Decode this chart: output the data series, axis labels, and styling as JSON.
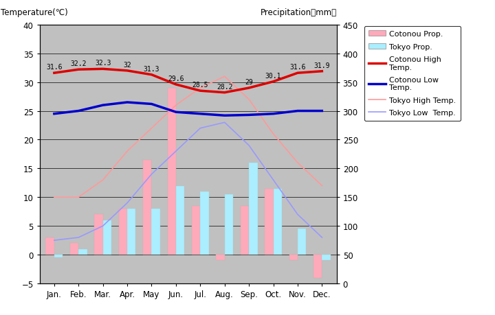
{
  "months": [
    "Jan.",
    "Feb.",
    "Mar.",
    "Apr.",
    "May",
    "Jun.",
    "Jul.",
    "Aug.",
    "Sep.",
    "Oct.",
    "Nov.",
    "Dec."
  ],
  "cotonou_prcp": [
    3,
    2,
    7,
    8,
    16.5,
    29,
    8.5,
    -1,
    8.5,
    11.5,
    -1,
    -4
  ],
  "tokyo_prcp": [
    -0.5,
    1,
    6,
    8,
    8,
    12,
    11,
    10.5,
    16,
    11.5,
    4.5,
    -1
  ],
  "cotonou_high": [
    31.6,
    32.2,
    32.3,
    32,
    31.3,
    29.6,
    28.5,
    28.2,
    29,
    30.1,
    31.6,
    31.9
  ],
  "cotonou_low": [
    24.5,
    25.0,
    26.0,
    26.5,
    26.2,
    24.8,
    24.5,
    24.2,
    24.3,
    24.5,
    25.0,
    25.0
  ],
  "tokyo_high": [
    10.0,
    10.0,
    13,
    18,
    22,
    26,
    29,
    31,
    27,
    21,
    16,
    12
  ],
  "tokyo_low": [
    2.5,
    3.0,
    5,
    9,
    14,
    18,
    22,
    23,
    19,
    13,
    7,
    3
  ],
  "cotonou_high_labels": [
    "31.6",
    "32.2",
    "32.3",
    "32",
    "31.3",
    "29.6",
    "28.5",
    "28.2",
    "29",
    "30.1",
    "31.6",
    "31.9"
  ],
  "bar_width": 0.35,
  "bg_color": "#c0c0c0",
  "cotonou_prcp_color": "#ffaabb",
  "tokyo_prcp_color": "#aaeeff",
  "cotonou_high_color": "#dd0000",
  "cotonou_low_color": "#0000cc",
  "tokyo_high_color": "#ff9999",
  "tokyo_low_color": "#9999ff",
  "ylim_temp": [
    -5,
    40
  ],
  "ylim_prcp": [
    0,
    450
  ],
  "ylabel_left": "Temperature(℃)",
  "ylabel_right": "Precipitation（mm）",
  "temp_yticks": [
    -5,
    0,
    5,
    10,
    15,
    20,
    25,
    30,
    35,
    40
  ],
  "prcp_yticks": [
    0,
    50,
    100,
    150,
    200,
    250,
    300,
    350,
    400,
    450
  ]
}
